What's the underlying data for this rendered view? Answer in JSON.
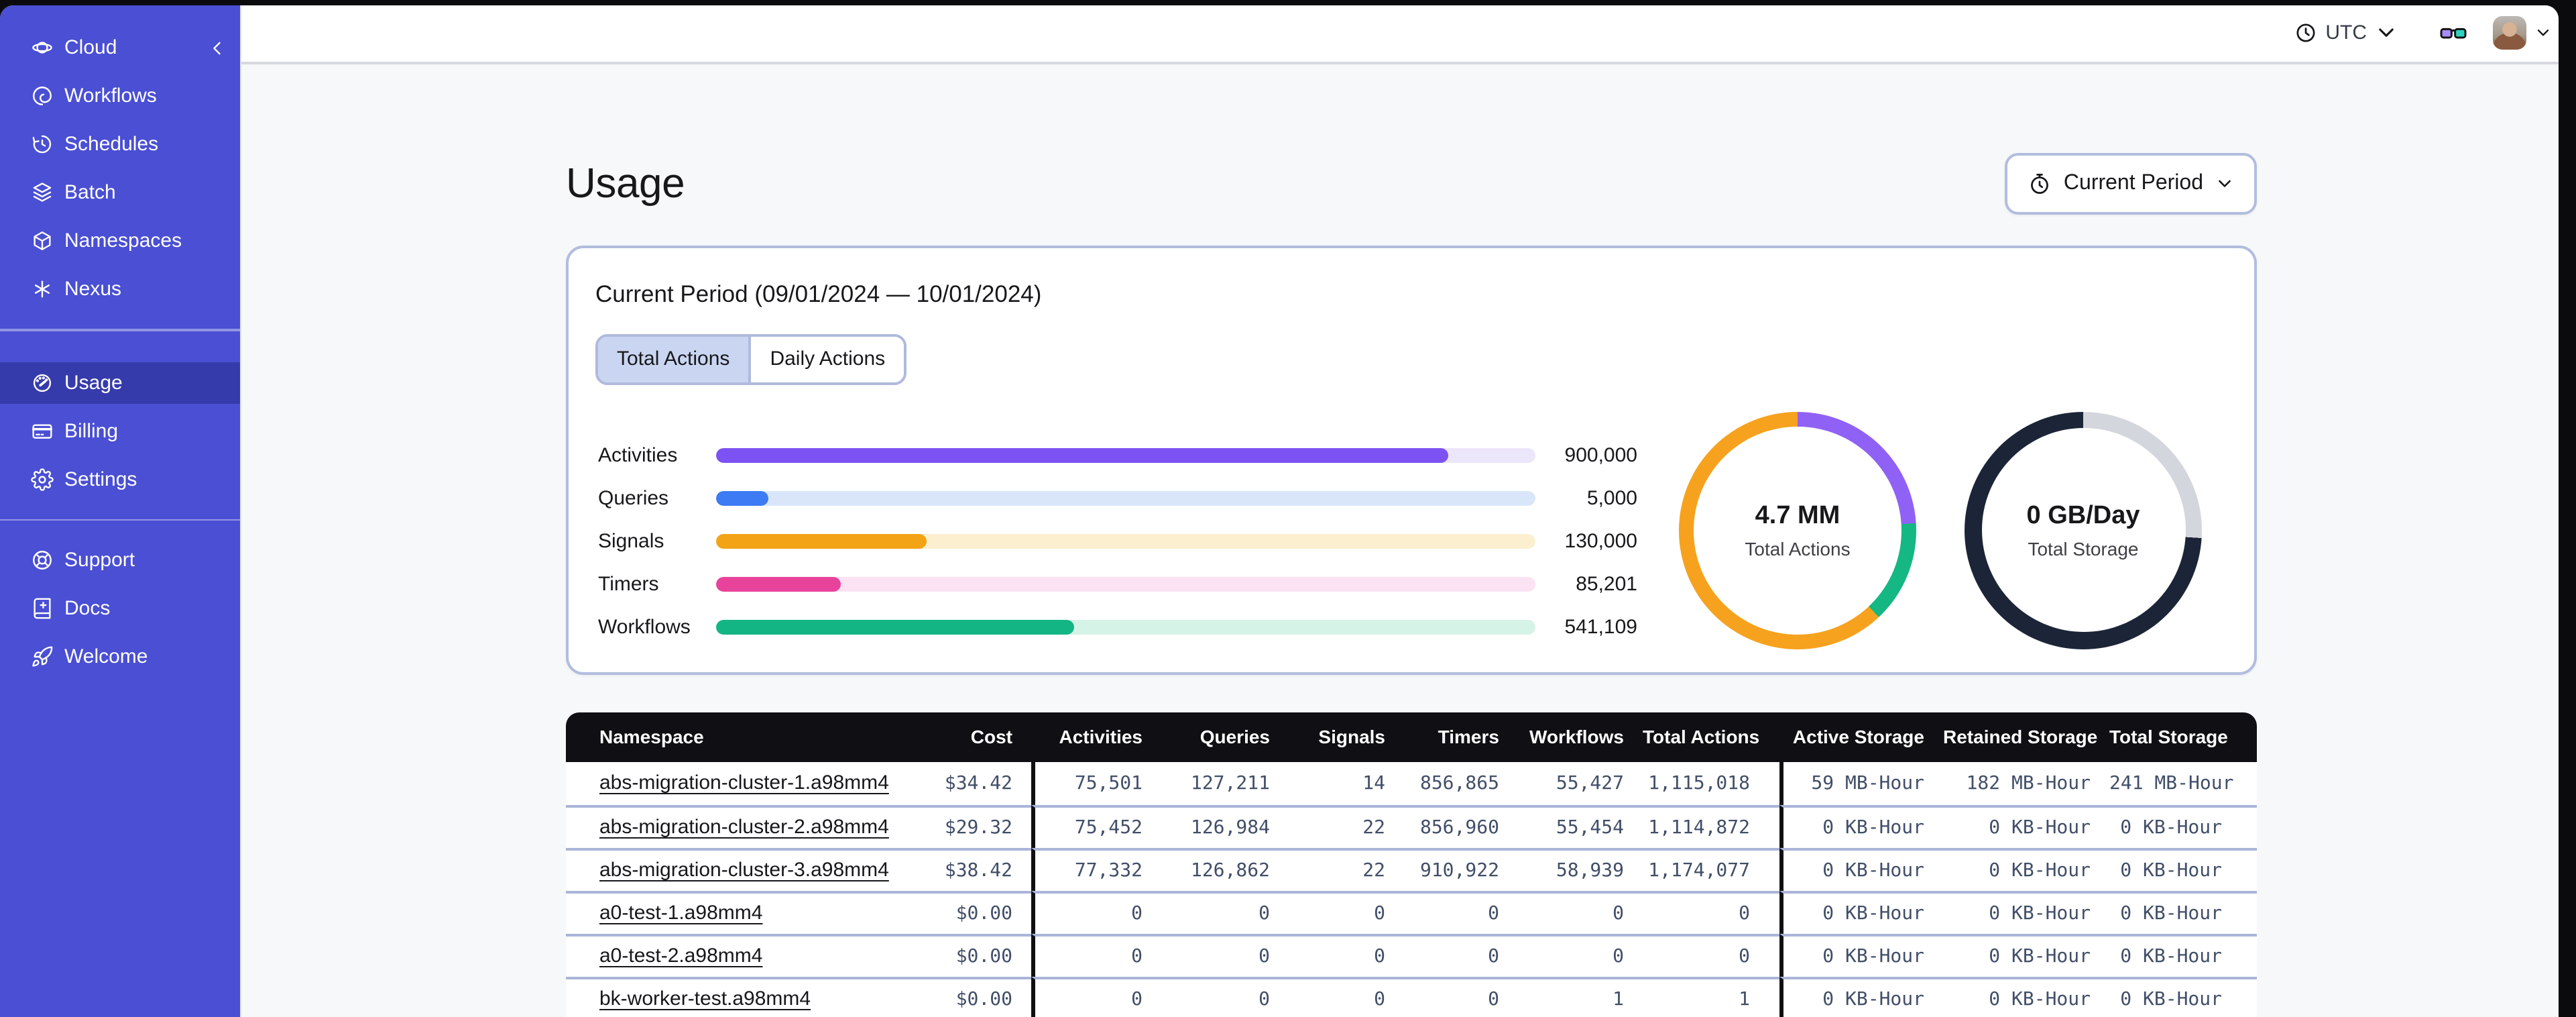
{
  "accent_colors": {
    "sidebar": "#4A4FD3",
    "selected_tab_bg": "#CAD6F1",
    "card_border": "#B2BDDE",
    "table_header_bg": "#101014"
  },
  "sidebar": {
    "sections": [
      {
        "items": [
          {
            "label": "Cloud",
            "icon": "cloud",
            "trailing_icon": "chevron-left"
          },
          {
            "label": "Workflows",
            "icon": "workflows"
          },
          {
            "label": "Schedules",
            "icon": "schedules"
          },
          {
            "label": "Batch",
            "icon": "batch"
          },
          {
            "label": "Namespaces",
            "icon": "namespaces"
          },
          {
            "label": "Nexus",
            "icon": "nexus"
          }
        ]
      },
      {
        "items": [
          {
            "label": "Usage",
            "icon": "usage",
            "active": true
          },
          {
            "label": "Billing",
            "icon": "billing"
          },
          {
            "label": "Settings",
            "icon": "settings"
          }
        ]
      },
      {
        "items": [
          {
            "label": "Support",
            "icon": "support"
          },
          {
            "label": "Docs",
            "icon": "docs"
          },
          {
            "label": "Welcome",
            "icon": "welcome"
          }
        ]
      }
    ]
  },
  "topbar": {
    "timezone": {
      "icon": "clock",
      "label": "UTC",
      "chevron": "chevron-down"
    },
    "labs_icon": "glasses",
    "avatar": "user-photo",
    "user_chevron": "chevron-down"
  },
  "page": {
    "title": "Usage",
    "period_button": {
      "icon": "stopwatch",
      "label": "Current Period",
      "chevron": "chevron-down"
    }
  },
  "card": {
    "title": "Current Period (09/01/2024 — 10/01/2024)",
    "tabs": [
      {
        "label": "Total Actions",
        "active": true
      },
      {
        "label": "Daily Actions",
        "active": false
      }
    ]
  },
  "chart_data": [
    {
      "type": "bar",
      "title": "Current Period (09/01/2024 — 10/01/2024)",
      "orientation": "horizontal",
      "categories": [
        "Activities",
        "Queries",
        "Signals",
        "Timers",
        "Workflows"
      ],
      "values": [
        900000,
        5000,
        130000,
        85201,
        541109
      ],
      "value_labels": [
        "900,000",
        "5,000",
        "130,000",
        "85,201",
        "541,109"
      ],
      "fill_percent": [
        89.3,
        6.4,
        25.7,
        15.2,
        43.7
      ],
      "bar_colors": [
        "#7C52F2",
        "#3D7BF4",
        "#F2A416",
        "#E8439B",
        "#13B585"
      ],
      "track_colors": [
        "#ECE6FA",
        "#D9E6FA",
        "#FBEFCF",
        "#FBE3F3",
        "#D5F3E6"
      ],
      "grid": false,
      "legend": false
    },
    {
      "type": "donut",
      "center_value": "4.7 MM",
      "center_label": "Total Actions",
      "segments": [
        {
          "name": "segment-purple",
          "color": "#9061F5",
          "percent": 24
        },
        {
          "name": "segment-green",
          "color": "#15B783",
          "percent": 14
        },
        {
          "name": "segment-orange",
          "color": "#F6A21E",
          "percent": 62
        }
      ]
    },
    {
      "type": "donut",
      "center_value": "0 GB/Day",
      "center_label": "Total Storage",
      "segments": [
        {
          "name": "segment-gray",
          "color": "#D3D6DC",
          "percent": 26
        },
        {
          "name": "segment-navy",
          "color": "#1C2537",
          "percent": 74
        }
      ]
    }
  ],
  "table": {
    "columns": [
      {
        "label": "Namespace",
        "key": "ns"
      },
      {
        "label": "Cost",
        "key": "cost"
      },
      {
        "label": "Activities",
        "key": "act"
      },
      {
        "label": "Queries",
        "key": "q"
      },
      {
        "label": "Signals",
        "key": "sig"
      },
      {
        "label": "Timers",
        "key": "tim"
      },
      {
        "label": "Workflows",
        "key": "wf"
      },
      {
        "label": "Total Actions",
        "key": "ta"
      },
      {
        "label": "Active Storage",
        "key": "as"
      },
      {
        "label": "Retained Storage",
        "key": "rs"
      },
      {
        "label": "Total Storage",
        "key": "ts"
      }
    ],
    "rows": [
      [
        "abs-migration-cluster-1.a98mm4",
        "$34.42",
        "75,501",
        "127,211",
        "14",
        "856,865",
        "55,427",
        "1,115,018",
        "59 MB-Hour",
        "182 MB-Hour",
        "241 MB-Hour"
      ],
      [
        "abs-migration-cluster-2.a98mm4",
        "$29.32",
        "75,452",
        "126,984",
        "22",
        "856,960",
        "55,454",
        "1,114,872",
        "0 KB-Hour",
        "0 KB-Hour",
        "0 KB-Hour"
      ],
      [
        "abs-migration-cluster-3.a98mm4",
        "$38.42",
        "77,332",
        "126,862",
        "22",
        "910,922",
        "58,939",
        "1,174,077",
        "0 KB-Hour",
        "0 KB-Hour",
        "0 KB-Hour"
      ],
      [
        "a0-test-1.a98mm4",
        "$0.00",
        "0",
        "0",
        "0",
        "0",
        "0",
        "0",
        "0 KB-Hour",
        "0 KB-Hour",
        "0 KB-Hour"
      ],
      [
        "a0-test-2.a98mm4",
        "$0.00",
        "0",
        "0",
        "0",
        "0",
        "0",
        "0",
        "0 KB-Hour",
        "0 KB-Hour",
        "0 KB-Hour"
      ],
      [
        "bk-worker-test.a98mm4",
        "$0.00",
        "0",
        "0",
        "0",
        "0",
        "1",
        "1",
        "0 KB-Hour",
        "0 KB-Hour",
        "0 KB-Hour"
      ]
    ]
  }
}
